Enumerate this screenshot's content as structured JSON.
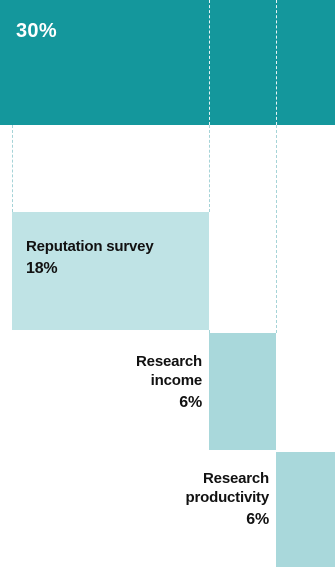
{
  "chart_data": {
    "type": "bar",
    "subtype": "waterfall-staircase",
    "segments": [
      {
        "label": "",
        "pct_label": "30%",
        "value": 30,
        "color": "#14979c"
      },
      {
        "label": "Reputation survey",
        "pct_label": "18%",
        "value": 18,
        "color": "#bfe3e5"
      },
      {
        "label": "Research income",
        "pct_label": "6%",
        "value": 6,
        "color": "#a9d8db"
      },
      {
        "label": "Research productivity",
        "pct_label": "6%",
        "value": 6,
        "color": "#a9d8db"
      }
    ]
  }
}
